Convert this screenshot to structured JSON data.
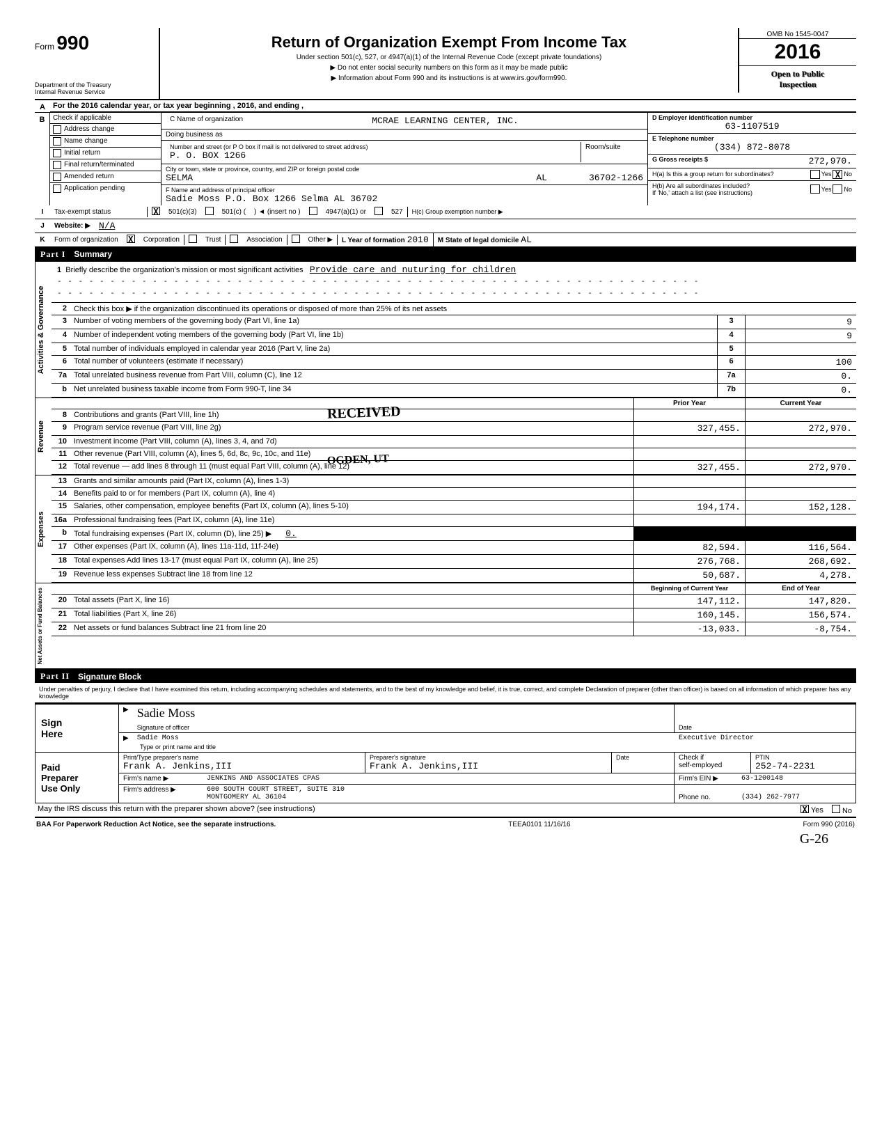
{
  "header": {
    "form_prefix": "Form",
    "form_number": "990",
    "omb": "OMB No 1545-0047",
    "year": "2016",
    "title": "Return of Organization Exempt From Income Tax",
    "subtitle": "Under section 501(c), 527, or 4947(a)(1) of the Internal Revenue Code (except private foundations)",
    "bullet1": "▶ Do not enter social security numbers on this form as it may be made public",
    "bullet2": "▶ Information about Form 990 and its instructions is at  www.irs.gov/form990.",
    "dept1": "Department of the Treasury",
    "dept2": "Internal Revenue Service",
    "open": "Open to Public",
    "insp": "Inspection"
  },
  "a_line": "For the 2016 calendar year, or tax year beginning                                , 2016, and ending                              ,",
  "b": {
    "header": "Check if applicable",
    "items": [
      "Address change",
      "Name change",
      "Initial return",
      "Final return/terminated",
      "Amended return",
      "Application pending"
    ]
  },
  "c": {
    "name_lbl": "C  Name of organization",
    "name": "MCRAE LEARNING CENTER, INC.",
    "dba_lbl": "Doing business as",
    "addr_lbl": "Number and street (or P O box if mail is not delivered to street address)",
    "room_lbl": "Room/suite",
    "addr": "P. O. BOX 1266",
    "city_lbl": "City or town, state or province, country, and ZIP or foreign postal code",
    "city": "SELMA",
    "state": "AL",
    "zip": "36702-1266",
    "officer_lbl": "F  Name and address of principal officer",
    "officer": "Sadie Moss P.O. Box 1266  Selma         AL 36702"
  },
  "d": {
    "lbl": "D  Employer identification number",
    "val": "63-1107519"
  },
  "e": {
    "lbl": "E  Telephone number",
    "val": "(334) 872-8078"
  },
  "g": {
    "lbl": "G  Gross receipts $",
    "val": "272,970."
  },
  "h": {
    "ha": "H(a) Is this a group return for subordinates?",
    "hb": "H(b) Are all subordinates included?",
    "hb2": "If 'No,' attach a list (see instructions)",
    "hc": "H(c) Group exemption number ▶"
  },
  "i": {
    "lbl": "Tax-exempt status",
    "opt1": "501(c)(3)",
    "opt2": "501(c) (",
    "opt2b": ") ◄  (insert no )",
    "opt3": "4947(a)(1) or",
    "opt4": "527"
  },
  "j": {
    "lbl": "Website: ▶",
    "val": "N/A"
  },
  "k": {
    "lbl": "Form of organization",
    "opts": [
      "Corporation",
      "Trust",
      "Association",
      "Other ▶"
    ],
    "l_lbl": "L Year of formation",
    "l_val": "2010",
    "m_lbl": "M State of legal domicile",
    "m_val": "AL"
  },
  "part1": {
    "title": "Summary",
    "mission_lbl": "Briefly describe the organization's mission or most significant activities",
    "mission": "Provide care and nuturing for children",
    "line2": "Check this box ▶       if the organization discontinued its operations or disposed of more than 25% of its net assets",
    "lines_gov": [
      {
        "n": "3",
        "t": "Number of voting members of the governing body (Part VI, line 1a)",
        "s": "3",
        "v": "9"
      },
      {
        "n": "4",
        "t": "Number of independent voting members of the governing body (Part VI, line 1b)",
        "s": "4",
        "v": "9"
      },
      {
        "n": "5",
        "t": "Total number of individuals employed in calendar year 2016 (Part V, line 2a)",
        "s": "5",
        "v": ""
      },
      {
        "n": "6",
        "t": "Total number of volunteers (estimate if necessary)",
        "s": "6",
        "v": "100"
      },
      {
        "n": "7a",
        "t": "Total unrelated business revenue from Part VIII, column (C), line 12",
        "s": "7a",
        "v": "0."
      },
      {
        "n": "b",
        "t": "Net unrelated business taxable income from Form 990-T, line 34",
        "s": "7b",
        "v": "0."
      }
    ],
    "col_prior": "Prior Year",
    "col_curr": "Current Year",
    "lines_rev": [
      {
        "n": "8",
        "t": "Contributions and grants (Part VIII, line 1h)",
        "p": "",
        "c": ""
      },
      {
        "n": "9",
        "t": "Program service revenue (Part VIII, line 2g)",
        "p": "327,455.",
        "c": "272,970."
      },
      {
        "n": "10",
        "t": "Investment income (Part VIII, column (A), lines 3, 4, and 7d)",
        "p": "",
        "c": ""
      },
      {
        "n": "11",
        "t": "Other revenue (Part VIII, column (A), lines 5, 6d, 8c, 9c, 10c, and 11e)",
        "p": "",
        "c": ""
      },
      {
        "n": "12",
        "t": "Total revenue — add lines 8 through 11 (must equal Part VIII, column (A), line 12)",
        "p": "327,455.",
        "c": "272,970."
      }
    ],
    "lines_exp": [
      {
        "n": "13",
        "t": "Grants and similar amounts paid (Part IX, column (A), lines 1-3)",
        "p": "",
        "c": ""
      },
      {
        "n": "14",
        "t": "Benefits paid to or for members (Part IX, column (A), line 4)",
        "p": "",
        "c": ""
      },
      {
        "n": "15",
        "t": "Salaries, other compensation, employee benefits (Part IX, column (A), lines 5-10)",
        "p": "194,174.",
        "c": "152,128."
      },
      {
        "n": "16a",
        "t": "Professional fundraising fees (Part IX, column (A), line 11e)",
        "p": "",
        "c": ""
      },
      {
        "n": "b",
        "t": "Total fundraising expenses (Part IX, column (D), line 25) ▶",
        "p": "shade",
        "c": "shade",
        "extra": "0."
      },
      {
        "n": "17",
        "t": "Other expenses (Part IX, column (A), lines 11a-11d, 11f-24e)",
        "p": "82,594.",
        "c": "116,564."
      },
      {
        "n": "18",
        "t": "Total expenses  Add lines 13-17 (must equal Part IX, column (A), line 25)",
        "p": "276,768.",
        "c": "268,692."
      },
      {
        "n": "19",
        "t": "Revenue less expenses  Subtract line 18 from line 12",
        "p": "50,687.",
        "c": "4,278."
      }
    ],
    "col_beg": "Beginning of Current Year",
    "col_end": "End of Year",
    "lines_na": [
      {
        "n": "20",
        "t": "Total assets (Part X, line 16)",
        "p": "147,112.",
        "c": "147,820."
      },
      {
        "n": "21",
        "t": "Total liabilities (Part X, line 26)",
        "p": "160,145.",
        "c": "156,574."
      },
      {
        "n": "22",
        "t": "Net assets or fund balances  Subtract line 21 from line 20",
        "p": "-13,033.",
        "c": "-8,754."
      }
    ],
    "side_labels": [
      "Activities & Governance",
      "Revenue",
      "Expenses",
      "Net Assets or\nFund Balances"
    ],
    "received": "RECEIVED",
    "ogden": "OGDEN, UT"
  },
  "part2": {
    "title": "Signature Block",
    "perjury": "Under penalties of perjury, I declare that I have examined this return, including accompanying schedules and statements, and to the best of my knowledge and belief, it is true, correct, and complete Declaration of preparer (other than officer) is based on all information of which preparer has any knowledge",
    "sign_here": "Sign\nHere",
    "sig_of": "Signature of officer",
    "date_lbl": "Date",
    "typed": "Sadie Moss",
    "typed_title": "Executive Director",
    "type_lbl": "Type or print name and title",
    "paid": "Paid\nPreparer\nUse Only",
    "prep_name_lbl": "Print/Type preparer's name",
    "prep_name": "Frank A. Jenkins,III",
    "prep_sig_lbl": "Preparer's signature",
    "prep_sig": "Frank A. Jenkins,III",
    "prep_date_lbl": "Date",
    "check_lbl": "Check        if",
    "self_emp": "self-employed",
    "ptin_lbl": "PTIN",
    "ptin": "252-74-2231",
    "firm_lbl": "Firm's name    ▶",
    "firm_name": "JENKINS AND ASSOCIATES CPAS",
    "firm_ein_lbl": "Firm's EIN ▶",
    "firm_ein": "63-1200148",
    "firm_addr_lbl": "Firm's address  ▶",
    "firm_addr1": "600 SOUTH COURT STREET, SUITE 310",
    "firm_addr2": "MONTGOMERY                AL  36104",
    "phone_lbl": "Phone no.",
    "phone": "(334) 262-7977",
    "discuss": "May the IRS discuss this return with the preparer shown above? (see instructions)",
    "yes": "Yes",
    "no": "No"
  },
  "footer": {
    "baa": "BAA  For Paperwork Reduction Act Notice, see the separate instructions.",
    "teea": "TEEA0101  11/16/16",
    "form": "Form 990 (2016)",
    "hand": "G-26"
  }
}
